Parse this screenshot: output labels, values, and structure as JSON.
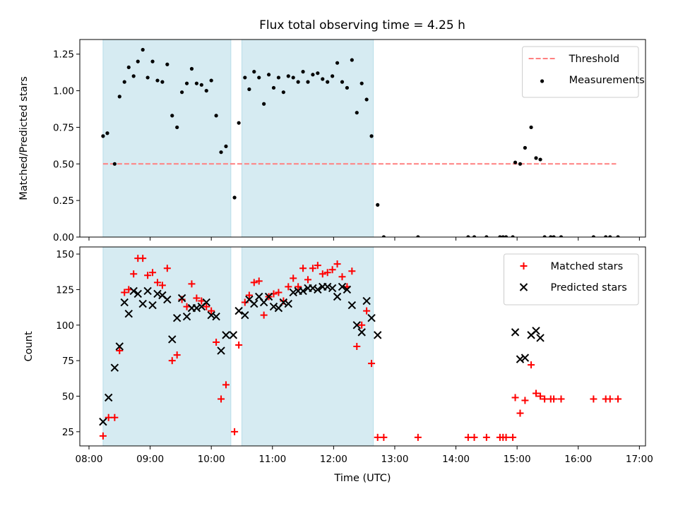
{
  "title": "Flux total observing time = 4.25 h",
  "chart_data": [
    {
      "type": "scatter",
      "panel": "top",
      "ylabel": "Matched/Predicted stars",
      "ylim": [
        0,
        1.35
      ],
      "yticks": [
        0.0,
        0.25,
        0.5,
        0.75,
        1.0,
        1.25
      ],
      "yticklabels": [
        "0.00",
        "0.25",
        "0.50",
        "0.75",
        "1.00",
        "1.25"
      ],
      "xlim": [
        7.85,
        17.1
      ],
      "shaded_intervals": [
        [
          8.23,
          10.32
        ],
        [
          10.5,
          12.65
        ]
      ],
      "threshold": {
        "name": "Threshold",
        "value": 0.5,
        "x_range": [
          8.23,
          16.62
        ],
        "color": "#ff8080",
        "style": "dashed"
      },
      "series": [
        {
          "name": "Measurements",
          "marker": "dot",
          "color": "#000000",
          "points": [
            [
              8.23,
              0.69
            ],
            [
              8.3,
              0.71
            ],
            [
              8.42,
              0.5
            ],
            [
              8.5,
              0.96
            ],
            [
              8.58,
              1.06
            ],
            [
              8.65,
              1.16
            ],
            [
              8.73,
              1.1
            ],
            [
              8.8,
              1.2
            ],
            [
              8.88,
              1.28
            ],
            [
              8.96,
              1.09
            ],
            [
              9.04,
              1.2
            ],
            [
              9.12,
              1.07
            ],
            [
              9.2,
              1.06
            ],
            [
              9.28,
              1.18
            ],
            [
              9.36,
              0.83
            ],
            [
              9.44,
              0.75
            ],
            [
              9.52,
              0.99
            ],
            [
              9.6,
              1.05
            ],
            [
              9.68,
              1.15
            ],
            [
              9.76,
              1.05
            ],
            [
              9.84,
              1.04
            ],
            [
              9.92,
              1.0
            ],
            [
              10.0,
              1.07
            ],
            [
              10.08,
              0.83
            ],
            [
              10.16,
              0.58
            ],
            [
              10.24,
              0.62
            ],
            [
              10.38,
              0.27
            ],
            [
              10.45,
              0.78
            ],
            [
              10.55,
              1.09
            ],
            [
              10.62,
              1.01
            ],
            [
              10.7,
              1.13
            ],
            [
              10.78,
              1.09
            ],
            [
              10.86,
              0.91
            ],
            [
              10.94,
              1.11
            ],
            [
              11.02,
              1.02
            ],
            [
              11.1,
              1.09
            ],
            [
              11.18,
              0.99
            ],
            [
              11.26,
              1.1
            ],
            [
              11.34,
              1.09
            ],
            [
              11.42,
              1.06
            ],
            [
              11.5,
              1.13
            ],
            [
              11.58,
              1.06
            ],
            [
              11.66,
              1.11
            ],
            [
              11.74,
              1.12
            ],
            [
              11.82,
              1.08
            ],
            [
              11.9,
              1.06
            ],
            [
              11.98,
              1.1
            ],
            [
              12.06,
              1.19
            ],
            [
              12.14,
              1.06
            ],
            [
              12.22,
              1.02
            ],
            [
              12.3,
              1.21
            ],
            [
              12.38,
              0.85
            ],
            [
              12.46,
              1.05
            ],
            [
              12.54,
              0.94
            ],
            [
              12.62,
              0.69
            ],
            [
              12.72,
              0.22
            ],
            [
              12.82,
              0.0
            ],
            [
              13.38,
              0.0
            ],
            [
              14.2,
              0.0
            ],
            [
              14.3,
              0.0
            ],
            [
              14.5,
              0.0
            ],
            [
              14.72,
              0.0
            ],
            [
              14.77,
              0.0
            ],
            [
              14.82,
              0.0
            ],
            [
              14.93,
              0.0
            ],
            [
              14.97,
              0.51
            ],
            [
              15.05,
              0.5
            ],
            [
              15.13,
              0.61
            ],
            [
              15.23,
              0.75
            ],
            [
              15.31,
              0.54
            ],
            [
              15.38,
              0.53
            ],
            [
              15.45,
              0.0
            ],
            [
              15.55,
              0.0
            ],
            [
              15.6,
              0.0
            ],
            [
              15.72,
              0.0
            ],
            [
              16.25,
              0.0
            ],
            [
              16.45,
              0.0
            ],
            [
              16.52,
              0.0
            ],
            [
              16.65,
              0.0
            ]
          ]
        }
      ]
    },
    {
      "type": "scatter",
      "panel": "bottom",
      "xlabel": "Time (UTC)",
      "ylabel": "Count",
      "ylim": [
        15,
        155
      ],
      "yticks": [
        25,
        50,
        75,
        100,
        125,
        150
      ],
      "yticklabels": [
        "25",
        "50",
        "75",
        "100",
        "125",
        "150"
      ],
      "xlim": [
        7.85,
        17.1
      ],
      "xticks": [
        8,
        9,
        10,
        11,
        12,
        13,
        14,
        15,
        16,
        17
      ],
      "xticklabels": [
        "08:00",
        "09:00",
        "10:00",
        "11:00",
        "12:00",
        "13:00",
        "14:00",
        "15:00",
        "16:00",
        "17:00"
      ],
      "shaded_intervals": [
        [
          8.23,
          10.32
        ],
        [
          10.5,
          12.65
        ]
      ],
      "series": [
        {
          "name": "Matched stars",
          "marker": "plus",
          "color": "#ff0000",
          "points": [
            [
              8.23,
              22
            ],
            [
              8.32,
              35
            ],
            [
              8.42,
              35
            ],
            [
              8.5,
              82
            ],
            [
              8.58,
              123
            ],
            [
              8.65,
              125
            ],
            [
              8.73,
              136
            ],
            [
              8.8,
              147
            ],
            [
              8.88,
              147
            ],
            [
              8.96,
              135
            ],
            [
              9.04,
              137
            ],
            [
              9.12,
              130
            ],
            [
              9.2,
              128
            ],
            [
              9.28,
              140
            ],
            [
              9.36,
              75
            ],
            [
              9.44,
              79
            ],
            [
              9.52,
              118
            ],
            [
              9.6,
              113
            ],
            [
              9.68,
              129
            ],
            [
              9.76,
              119
            ],
            [
              9.84,
              117
            ],
            [
              9.92,
              113
            ],
            [
              10.0,
              110
            ],
            [
              10.08,
              88
            ],
            [
              10.16,
              48
            ],
            [
              10.24,
              58
            ],
            [
              10.38,
              25
            ],
            [
              10.45,
              86
            ],
            [
              10.55,
              116
            ],
            [
              10.62,
              121
            ],
            [
              10.7,
              130
            ],
            [
              10.78,
              131
            ],
            [
              10.86,
              107
            ],
            [
              10.94,
              120
            ],
            [
              11.02,
              122
            ],
            [
              11.1,
              123
            ],
            [
              11.18,
              117
            ],
            [
              11.26,
              127
            ],
            [
              11.34,
              133
            ],
            [
              11.42,
              127
            ],
            [
              11.5,
              140
            ],
            [
              11.58,
              132
            ],
            [
              11.66,
              140
            ],
            [
              11.74,
              142
            ],
            [
              11.82,
              136
            ],
            [
              11.9,
              137
            ],
            [
              11.98,
              139
            ],
            [
              12.06,
              143
            ],
            [
              12.14,
              134
            ],
            [
              12.22,
              127
            ],
            [
              12.3,
              138
            ],
            [
              12.38,
              85
            ],
            [
              12.46,
              100
            ],
            [
              12.54,
              110
            ],
            [
              12.62,
              73
            ],
            [
              12.72,
              21
            ],
            [
              12.82,
              21
            ],
            [
              13.38,
              21
            ],
            [
              14.2,
              21
            ],
            [
              14.3,
              21
            ],
            [
              14.5,
              21
            ],
            [
              14.72,
              21
            ],
            [
              14.77,
              21
            ],
            [
              14.82,
              21
            ],
            [
              14.93,
              21
            ],
            [
              14.97,
              49
            ],
            [
              15.05,
              38
            ],
            [
              15.13,
              47
            ],
            [
              15.23,
              72
            ],
            [
              15.31,
              52
            ],
            [
              15.38,
              50
            ],
            [
              15.45,
              48
            ],
            [
              15.55,
              48
            ],
            [
              15.6,
              48
            ],
            [
              15.72,
              48
            ],
            [
              16.25,
              48
            ],
            [
              16.45,
              48
            ],
            [
              16.52,
              48
            ],
            [
              16.65,
              48
            ]
          ]
        },
        {
          "name": "Predicted stars",
          "marker": "x",
          "color": "#000000",
          "points": [
            [
              8.23,
              32
            ],
            [
              8.32,
              49
            ],
            [
              8.42,
              70
            ],
            [
              8.5,
              85
            ],
            [
              8.58,
              116
            ],
            [
              8.65,
              108
            ],
            [
              8.73,
              124
            ],
            [
              8.8,
              122
            ],
            [
              8.88,
              115
            ],
            [
              8.96,
              124
            ],
            [
              9.04,
              114
            ],
            [
              9.12,
              122
            ],
            [
              9.2,
              121
            ],
            [
              9.28,
              118
            ],
            [
              9.36,
              90
            ],
            [
              9.44,
              105
            ],
            [
              9.52,
              119
            ],
            [
              9.6,
              106
            ],
            [
              9.68,
              112
            ],
            [
              9.76,
              112
            ],
            [
              9.84,
              113
            ],
            [
              9.92,
              116
            ],
            [
              10.0,
              107
            ],
            [
              10.08,
              106
            ],
            [
              10.16,
              82
            ],
            [
              10.24,
              93
            ],
            [
              10.36,
              93
            ],
            [
              10.45,
              110
            ],
            [
              10.55,
              107
            ],
            [
              10.62,
              118
            ],
            [
              10.7,
              115
            ],
            [
              10.78,
              120
            ],
            [
              10.86,
              116
            ],
            [
              10.94,
              120
            ],
            [
              11.02,
              113
            ],
            [
              11.1,
              112
            ],
            [
              11.18,
              116
            ],
            [
              11.26,
              115
            ],
            [
              11.34,
              123
            ],
            [
              11.42,
              124
            ],
            [
              11.5,
              124
            ],
            [
              11.58,
              126
            ],
            [
              11.66,
              126
            ],
            [
              11.74,
              125
            ],
            [
              11.82,
              127
            ],
            [
              11.9,
              127
            ],
            [
              11.98,
              126
            ],
            [
              12.06,
              120
            ],
            [
              12.14,
              127
            ],
            [
              12.22,
              125
            ],
            [
              12.3,
              114
            ],
            [
              12.38,
              100
            ],
            [
              12.46,
              95
            ],
            [
              12.54,
              117
            ],
            [
              12.62,
              105
            ],
            [
              12.72,
              93
            ],
            [
              14.97,
              95
            ],
            [
              15.05,
              76
            ],
            [
              15.13,
              77
            ],
            [
              15.23,
              93
            ],
            [
              15.31,
              96
            ],
            [
              15.38,
              91
            ]
          ]
        }
      ]
    }
  ]
}
